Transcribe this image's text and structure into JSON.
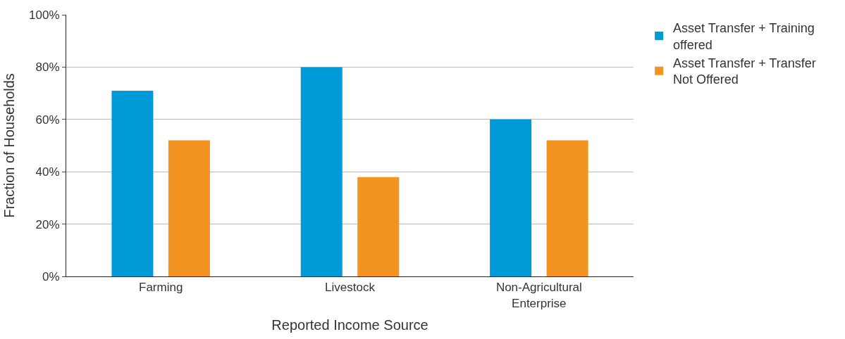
{
  "chart_data": {
    "type": "bar",
    "xlabel": "Reported Income Source",
    "ylabel": "Fraction of Households",
    "categories": [
      "Farming",
      "Livestock",
      "Non-Agricultural Enterprise"
    ],
    "series": [
      {
        "name": "Asset Transfer + Training offered",
        "color": "#009ad8",
        "values": [
          71,
          80,
          60
        ]
      },
      {
        "name": "Asset Transfer + Transfer Not Offered",
        "color": "#f39321",
        "values": [
          52,
          38,
          52
        ]
      }
    ],
    "ylim": [
      0,
      100
    ],
    "yticks": [
      {
        "value": 0,
        "label": "0%"
      },
      {
        "value": 20,
        "label": "20%"
      },
      {
        "value": 40,
        "label": "40%"
      },
      {
        "value": 60,
        "label": "60%"
      },
      {
        "value": 80,
        "label": "80%"
      },
      {
        "value": 100,
        "label": "100%"
      }
    ],
    "grid": "y",
    "legend": "top right"
  }
}
